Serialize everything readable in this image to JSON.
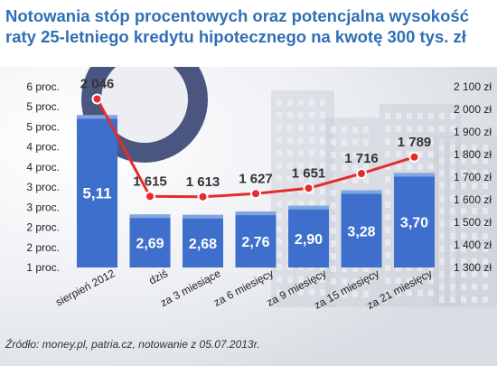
{
  "title": "Notowania stóp procentowych oraz potencjalna wysokość raty 25-letniego kredytu hipotecznego na kwotę 300 tys. zł",
  "source": "Źródło: money.pl, patria.cz, notowanie z 05.07.2013r.",
  "colors": {
    "title": "#2f6fb6",
    "bar": "#3f6fcd",
    "bar_top": "#7fa6e0",
    "line": "#e52c2c",
    "background": "#f4f5f7"
  },
  "chart_data": {
    "type": "bar",
    "categories": [
      "sierpień 2012",
      "dziś",
      "za 3 miesiące",
      "za 6 miesięcy",
      "za 9 miesięcy",
      "za 15 miesięcy",
      "za 21 miesięcy"
    ],
    "y_left": {
      "ticks": [
        "1 proc.",
        "2 proc.",
        "2 proc.",
        "3 proc.",
        "3 proc.",
        "4 proc.",
        "4 proc.",
        "5 proc.",
        "5 proc.",
        "6 proc."
      ],
      "range": [
        1.4,
        5.8
      ]
    },
    "y_right": {
      "ticks": [
        "1 300 zł",
        "1 400 zł",
        "1 500 zł",
        "1 600 zł",
        "1 700 zł",
        "1 800 zł",
        "1 900 zł",
        "2 000 zł",
        "2 100 zł"
      ],
      "range": [
        1300,
        2100
      ]
    },
    "series": [
      {
        "values": [
          5.11,
          2.69,
          2.68,
          2.76,
          2.9,
          3.28,
          3.7
        ],
        "labels": [
          "5,11",
          "2,69",
          "2,68",
          "2,76",
          "2,90",
          "3,28",
          "3,70"
        ]
      },
      {
        "values": [
          2046,
          1615,
          1613,
          1627,
          1651,
          1716,
          1789
        ],
        "labels": [
          "2 046",
          "1 615",
          "1 613",
          "1 627",
          "1 651",
          "1 716",
          "1 789"
        ]
      }
    ]
  }
}
